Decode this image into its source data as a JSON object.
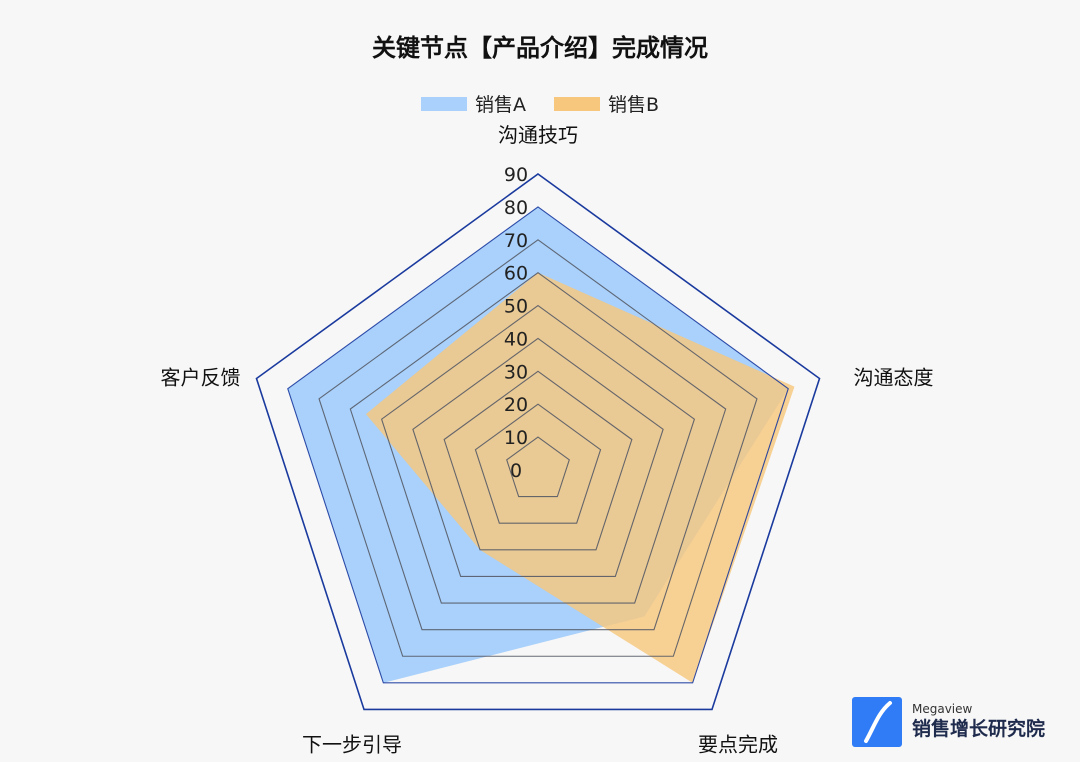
{
  "chart_data": {
    "type": "radar",
    "title": "关键节点【产品介绍】完成情况",
    "indicators": [
      "沟通技巧",
      "沟通态度",
      "要点完成",
      "下一步引导",
      "客户反馈"
    ],
    "scale_ticks": [
      "0",
      "10",
      "20",
      "30",
      "40",
      "50",
      "60",
      "70",
      "80",
      "90"
    ],
    "range": [
      0,
      90
    ],
    "legend_position": "top-center",
    "series": [
      {
        "name": "销售A",
        "values": [
          80,
          80,
          55,
          80,
          80
        ],
        "color": "#a9d1fb"
      },
      {
        "name": "销售B",
        "values": [
          60,
          82,
          80,
          30,
          55
        ],
        "color": "#f6c77c"
      }
    ],
    "grid_color": "#1a3a9e"
  },
  "brand": {
    "name_en": "Megaview",
    "name_cn": "销售增长研究院",
    "logo_color": "#2f7cf6"
  }
}
